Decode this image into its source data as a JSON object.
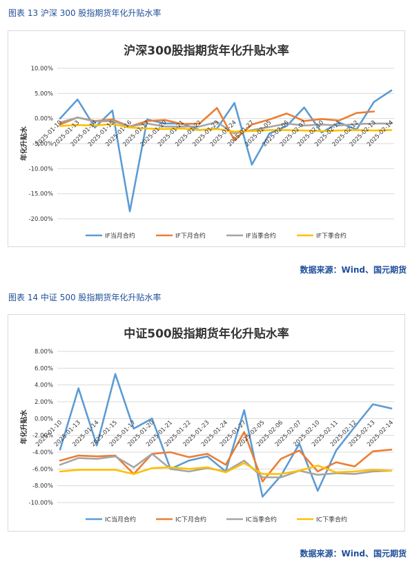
{
  "figures": [
    {
      "caption": "图表 13  沪深 300 股指期货年化升贴水率",
      "source": "数据来源：Wind、国元期货"
    },
    {
      "caption": "图表 14  中证 500 股指期货年化升贴水率",
      "source": "数据来源：Wind、国元期货"
    }
  ],
  "chart_data": [
    {
      "type": "line",
      "title": "沪深300股指期货年化升贴水率",
      "ylabel": "年化升贴水",
      "xlabel": "",
      "ylim": [
        -20,
        10
      ],
      "yticks": [
        10,
        5,
        0,
        -5,
        -10,
        -15,
        -20
      ],
      "ytick_labels": [
        "10.00%",
        "5.00%",
        "0.00%",
        "-5.00%",
        "-10.00%",
        "-15.00%",
        "-20.00%"
      ],
      "legend_position": "bottom",
      "grid": true,
      "categories": [
        "2025-01-10",
        "2025-01-13",
        "2025-01-14",
        "2025-01-15",
        "2025-01-16",
        "2025-01-17",
        "2025-01-20",
        "2025-01-21",
        "2025-01-22",
        "2025-01-23",
        "2025-01-24",
        "2025-01-27",
        "2025-02-05",
        "2025-02-06",
        "2025-02-07",
        "2025-02-10",
        "2025-02-11",
        "2025-02-12",
        "2025-02-13",
        "2025-02-14"
      ],
      "series": [
        {
          "name": "IF当月合约",
          "color": "#5b9bd5",
          "values": [
            0.0,
            3.8,
            -1.8,
            1.6,
            -18.5,
            -0.2,
            -1.0,
            -1.0,
            -2.3,
            -2.0,
            3.1,
            -9.2,
            -3.0,
            -1.5,
            2.2,
            -2.8,
            -0.8,
            -2.2,
            3.3,
            5.6
          ]
        },
        {
          "name": "IF下月合约",
          "color": "#ed7d31",
          "values": [
            -1.2,
            0.2,
            -0.5,
            -0.2,
            -1.6,
            -0.5,
            -0.3,
            -1.1,
            -1.0,
            2.1,
            -4.3,
            -1.2,
            -0.2,
            1.0,
            -0.5,
            -0.1,
            -0.4,
            1.1,
            1.4,
            null
          ]
        },
        {
          "name": "IF当季合约",
          "color": "#a5a5a5",
          "values": [
            -0.8,
            0.2,
            -0.6,
            -0.5,
            -1.6,
            -1.0,
            -1.6,
            -1.6,
            -1.6,
            -0.7,
            -3.0,
            -2.3,
            -1.7,
            -1.0,
            -1.4,
            -1.2,
            -1.4,
            -1.1,
            -1.0,
            -1.0
          ]
        },
        {
          "name": "IF下季合约",
          "color": "#ffc000",
          "values": [
            -1.5,
            -1.3,
            -1.4,
            -1.1,
            -1.8,
            -2.0,
            -2.1,
            -2.0,
            -2.3,
            -2.1,
            -2.6,
            -2.5,
            -2.3,
            -2.3,
            -2.4,
            -2.5,
            -2.4,
            -2.3,
            -2.4,
            -2.3
          ]
        }
      ]
    },
    {
      "type": "line",
      "title": "中证500股指期货年化升贴水率",
      "ylabel": "年化升贴水",
      "xlabel": "",
      "ylim": [
        -10,
        8
      ],
      "yticks": [
        8,
        6,
        4,
        2,
        0,
        -2,
        -4,
        -6,
        -8,
        -10
      ],
      "ytick_labels": [
        "8.00%",
        "6.00%",
        "4.00%",
        "2.00%",
        "0.00%",
        "-2.00%",
        "-4.00%",
        "-6.00%",
        "-8.00%",
        "-10.00%"
      ],
      "legend_position": "bottom",
      "grid": true,
      "categories": [
        "2025-01-10",
        "2025-01-13",
        "2025-01-14",
        "2025-01-15",
        "2025-01-17",
        "2025-01-20",
        "2025-01-21",
        "2025-01-22",
        "2025-01-23",
        "2025-01-24",
        "2025-01-27",
        "2025-02-05",
        "2025-02-06",
        "2025-02-07",
        "2025-02-10",
        "2025-02-11",
        "2025-02-12",
        "2025-02-13",
        "2025-02-14"
      ],
      "series": [
        {
          "name": "IC当月合约",
          "color": "#5b9bd5",
          "values": [
            -3.7,
            3.6,
            -3.2,
            5.3,
            -1.2,
            0.0,
            -6.0,
            -5.0,
            -4.5,
            -6.3,
            1.0,
            -9.3,
            -6.8,
            -3.0,
            -8.6,
            -3.8,
            -1.0,
            1.7,
            1.2
          ]
        },
        {
          "name": "IC下月合约",
          "color": "#ed7d31",
          "values": [
            -5.0,
            -4.4,
            -4.5,
            -4.4,
            -6.6,
            -4.2,
            -4.0,
            -4.6,
            -4.2,
            -5.5,
            -1.6,
            -7.5,
            -4.8,
            -3.8,
            -6.3,
            -5.2,
            -5.7,
            -3.9,
            -3.7
          ]
        },
        {
          "name": "IC当季合约",
          "color": "#a5a5a5",
          "values": [
            -5.5,
            -4.7,
            -4.8,
            -4.5,
            -5.8,
            -4.2,
            -6.0,
            -6.3,
            -5.9,
            -6.3,
            -5.0,
            -7.0,
            -7.0,
            -6.2,
            -6.7,
            -6.5,
            -6.6,
            -6.3,
            -6.2
          ]
        },
        {
          "name": "IC下季合约",
          "color": "#ffc000",
          "values": [
            -6.3,
            -6.1,
            -6.1,
            -6.1,
            -6.6,
            -5.9,
            -5.8,
            -6.0,
            -5.8,
            -6.4,
            -5.3,
            -6.6,
            -6.6,
            -6.2,
            -5.6,
            -6.4,
            -6.3,
            -6.1,
            -6.2
          ]
        }
      ]
    }
  ]
}
